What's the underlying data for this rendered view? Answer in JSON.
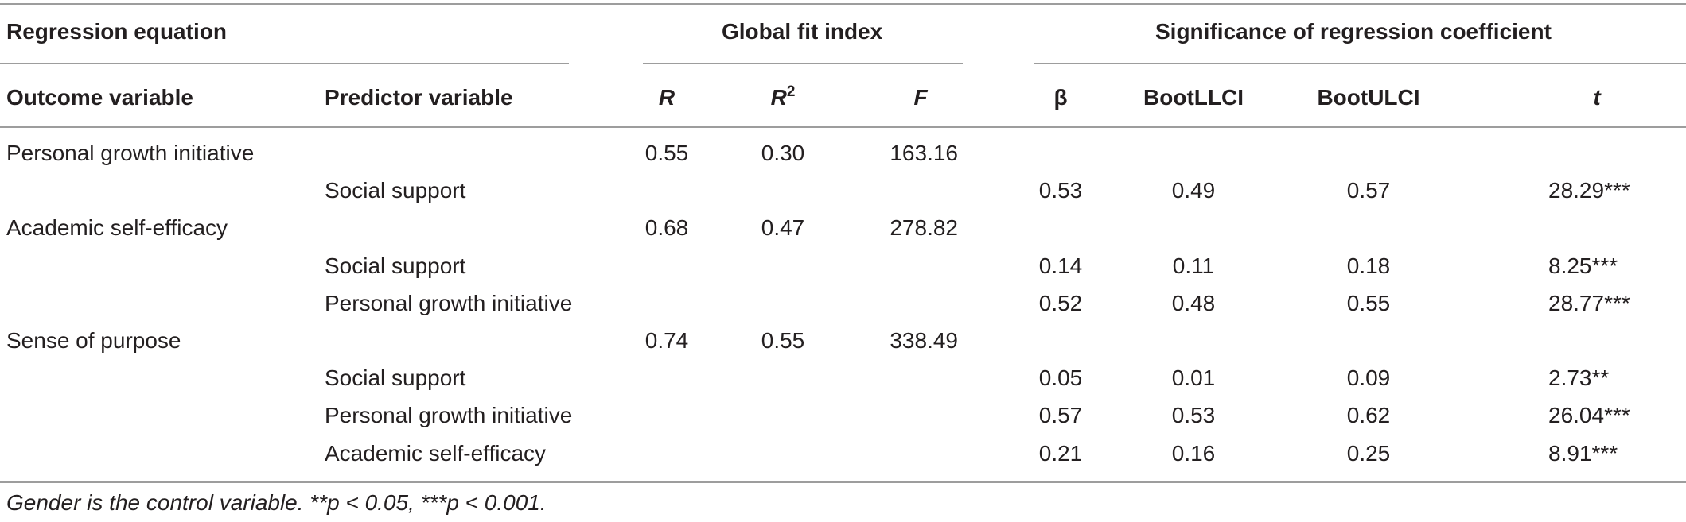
{
  "table": {
    "group_headers": {
      "regression_equation": "Regression equation",
      "global_fit_index": "Global fit index",
      "significance": "Significance of regression coefficient"
    },
    "column_headers": {
      "outcome": "Outcome variable",
      "predictor": "Predictor variable",
      "R": "R",
      "R2_base": "R",
      "R2_sup": "2",
      "F": "F",
      "beta": "β",
      "bootllci": "BootLLCI",
      "bootulci": "BootULCI",
      "t": "t"
    },
    "rows": [
      {
        "outcome": "Personal growth initiative",
        "predictor": "",
        "R": "0.55",
        "R2": "0.30",
        "F": "163.16",
        "beta": "",
        "llci": "",
        "ulci": "",
        "t": ""
      },
      {
        "outcome": "",
        "predictor": "Social support",
        "R": "",
        "R2": "",
        "F": "",
        "beta": "0.53",
        "llci": "0.49",
        "ulci": "0.57",
        "t": "28.29***"
      },
      {
        "outcome": "Academic self-efficacy",
        "predictor": "",
        "R": "0.68",
        "R2": "0.47",
        "F": "278.82",
        "beta": "",
        "llci": "",
        "ulci": "",
        "t": ""
      },
      {
        "outcome": "",
        "predictor": "Social support",
        "R": "",
        "R2": "",
        "F": "",
        "beta": "0.14",
        "llci": "0.11",
        "ulci": "0.18",
        "t": "8.25***"
      },
      {
        "outcome": "",
        "predictor": "Personal growth initiative",
        "R": "",
        "R2": "",
        "F": "",
        "beta": "0.52",
        "llci": "0.48",
        "ulci": "0.55",
        "t": "28.77***"
      },
      {
        "outcome": "Sense of purpose",
        "predictor": "",
        "R": "0.74",
        "R2": "0.55",
        "F": "338.49",
        "beta": "",
        "llci": "",
        "ulci": "",
        "t": ""
      },
      {
        "outcome": "",
        "predictor": "Social support",
        "R": "",
        "R2": "",
        "F": "",
        "beta": "0.05",
        "llci": "0.01",
        "ulci": "0.09",
        "t": "2.73**"
      },
      {
        "outcome": "",
        "predictor": "Personal growth initiative",
        "R": "",
        "R2": "",
        "F": "",
        "beta": "0.57",
        "llci": "0.53",
        "ulci": "0.62",
        "t": "26.04***"
      },
      {
        "outcome": "",
        "predictor": "Academic self-efficacy",
        "R": "",
        "R2": "",
        "F": "",
        "beta": "0.21",
        "llci": "0.16",
        "ulci": "0.25",
        "t": "8.91***"
      }
    ],
    "footnote": "Gender is the control variable. **p < 0.05, ***p < 0.001."
  }
}
